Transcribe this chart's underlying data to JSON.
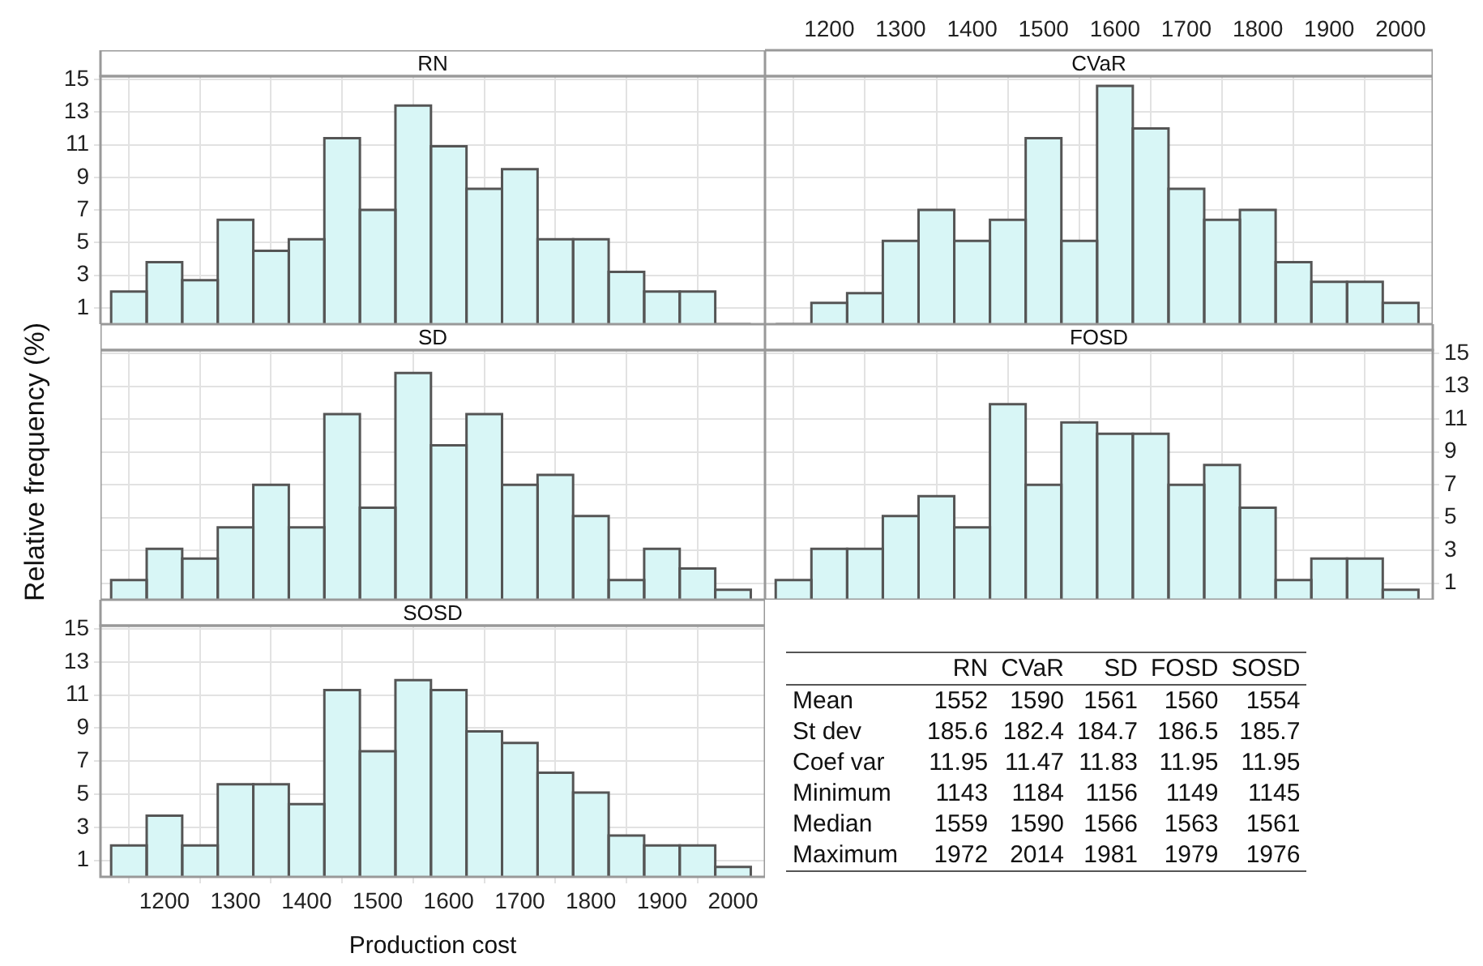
{
  "chart_data": [
    {
      "type": "histogram",
      "title": "RN",
      "bins": [
        1125,
        1175,
        1225,
        1275,
        1325,
        1375,
        1425,
        1475,
        1525,
        1575,
        1625,
        1675,
        1725,
        1775,
        1825,
        1875,
        1925,
        1975,
        2025
      ],
      "values": [
        2.0,
        3.8,
        2.7,
        6.4,
        4.5,
        5.2,
        11.4,
        7.0,
        13.4,
        10.9,
        8.3,
        9.5,
        5.2,
        5.2,
        3.2,
        2.0,
        2.0,
        0
      ],
      "color": "#d8f6f6",
      "xlim": [
        1110,
        2045
      ],
      "xticks": [
        1200,
        1300,
        1400,
        1500,
        1600,
        1700,
        1800,
        1900,
        2000
      ],
      "ylim": [
        0,
        15.2
      ],
      "yticks": [
        1,
        3,
        5,
        7,
        9,
        11,
        13,
        15
      ],
      "grid": true,
      "tick_labels": "y"
    },
    {
      "type": "histogram",
      "title": "CVaR",
      "bins": [
        1125,
        1175,
        1225,
        1275,
        1325,
        1375,
        1425,
        1475,
        1525,
        1575,
        1625,
        1675,
        1725,
        1775,
        1825,
        1875,
        1925,
        1975,
        2025
      ],
      "values": [
        0,
        1.3,
        1.9,
        5.1,
        7.0,
        5.1,
        6.4,
        11.4,
        5.1,
        14.6,
        12.0,
        8.3,
        6.4,
        7.0,
        3.8,
        2.6,
        2.6,
        1.3
      ],
      "color": "#d8f6f6",
      "xlim": [
        1110,
        2045
      ],
      "xticks": [
        1200,
        1300,
        1400,
        1500,
        1600,
        1700,
        1800,
        1900,
        2000
      ],
      "ylim": [
        0,
        15.2
      ],
      "yticks": [
        1,
        3,
        5,
        7,
        9,
        11,
        13,
        15
      ],
      "grid": true,
      "tick_labels": "x"
    },
    {
      "type": "histogram",
      "title": "SD",
      "ylabel": "Relative frequency (%)",
      "bins": [
        1125,
        1175,
        1225,
        1275,
        1325,
        1375,
        1425,
        1475,
        1525,
        1575,
        1625,
        1675,
        1725,
        1775,
        1825,
        1875,
        1925,
        1975,
        2025
      ],
      "values": [
        1.2,
        3.1,
        2.5,
        4.4,
        7.0,
        4.4,
        11.3,
        5.6,
        13.8,
        9.4,
        11.3,
        7.0,
        7.6,
        5.1,
        1.2,
        3.1,
        1.9,
        0.6
      ],
      "color": "#d8f6f6",
      "xlim": [
        1110,
        2045
      ],
      "xticks": [
        1200,
        1300,
        1400,
        1500,
        1600,
        1700,
        1800,
        1900,
        2000
      ],
      "ylim": [
        0,
        15.2
      ],
      "yticks": [
        1,
        3,
        5,
        7,
        9,
        11,
        13,
        15
      ],
      "grid": true,
      "tick_labels": false
    },
    {
      "type": "histogram",
      "title": "FOSD",
      "bins": [
        1125,
        1175,
        1225,
        1275,
        1325,
        1375,
        1425,
        1475,
        1525,
        1575,
        1625,
        1675,
        1725,
        1775,
        1825,
        1875,
        1925,
        1975,
        2025
      ],
      "values": [
        1.2,
        3.1,
        3.1,
        5.1,
        6.3,
        4.4,
        11.9,
        7.0,
        10.8,
        10.1,
        10.1,
        7.0,
        8.2,
        5.6,
        1.2,
        2.5,
        2.5,
        0.6
      ],
      "color": "#d8f6f6",
      "xlim": [
        1110,
        2045
      ],
      "xticks": [
        1200,
        1300,
        1400,
        1500,
        1600,
        1700,
        1800,
        1900,
        2000
      ],
      "ylim": [
        0,
        15.2
      ],
      "yticks": [
        1,
        3,
        5,
        7,
        9,
        11,
        13,
        15
      ],
      "grid": true,
      "tick_labels": "y"
    },
    {
      "type": "histogram",
      "title": "SOSD",
      "xlabel": "Production cost",
      "bins": [
        1125,
        1175,
        1225,
        1275,
        1325,
        1375,
        1425,
        1475,
        1525,
        1575,
        1625,
        1675,
        1725,
        1775,
        1825,
        1875,
        1925,
        1975,
        2025
      ],
      "values": [
        1.9,
        3.7,
        1.9,
        5.6,
        5.6,
        4.4,
        11.3,
        7.6,
        11.9,
        11.3,
        8.8,
        8.1,
        6.3,
        5.1,
        2.5,
        1.9,
        1.9,
        0.6
      ],
      "color": "#d8f6f6",
      "xlim": [
        1110,
        2045
      ],
      "xticks": [
        1200,
        1300,
        1400,
        1500,
        1600,
        1700,
        1800,
        1900,
        2000
      ],
      "ylim": [
        0,
        15.2
      ],
      "yticks": [
        1,
        3,
        5,
        7,
        9,
        11,
        13,
        15
      ],
      "grid": true
    },
    {
      "type": "other",
      "categories": [
        "RN",
        "CVaR",
        "SD",
        "FOSD",
        "SOSD"
      ],
      "y_categories": [
        "Mean",
        "St dev",
        "Coef var",
        "Minimum",
        "Median",
        "Maximum"
      ],
      "cell_labels": [
        [
          "1552",
          "1590",
          "1561",
          "1560",
          "1554"
        ],
        [
          "185.6",
          "182.4",
          "184.7",
          "186.5",
          "185.7"
        ],
        [
          "11.95",
          "11.47",
          "11.83",
          "11.95",
          "11.95"
        ],
        [
          "1143",
          "1184",
          "1156",
          "1149",
          "1145"
        ],
        [
          "1559",
          "1590",
          "1566",
          "1563",
          "1561"
        ],
        [
          "1972",
          "2014",
          "1981",
          "1979",
          "1976"
        ]
      ]
    }
  ]
}
